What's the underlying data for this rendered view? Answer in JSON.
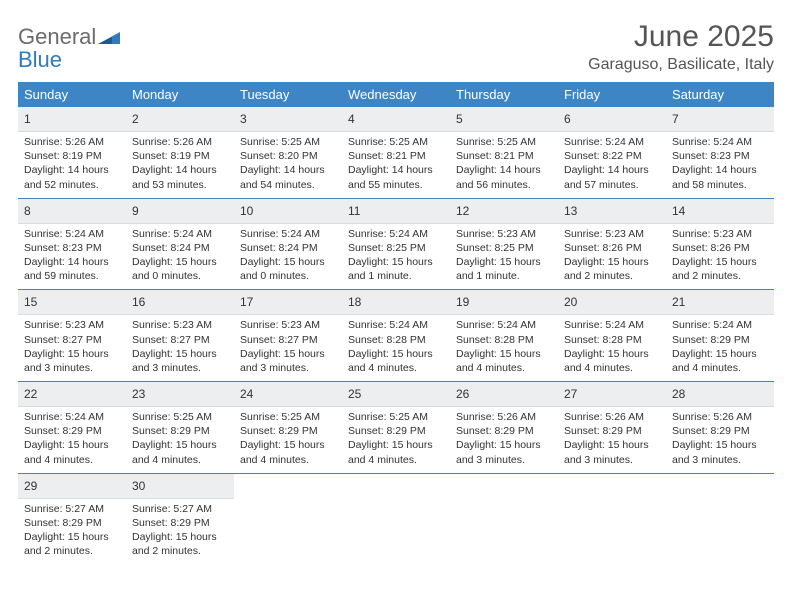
{
  "brand": {
    "name_part1": "General",
    "name_part2": "Blue",
    "color_gray": "#6b6b6b",
    "color_blue": "#2f7bbf"
  },
  "header": {
    "month_title": "June 2025",
    "location": "Garaguso, Basilicate, Italy"
  },
  "calendar": {
    "header_bg": "#3e85c6",
    "header_text_color": "#ffffff",
    "daynum_bg": "#eceeef",
    "border_color": "#3e85c6",
    "day_names": [
      "Sunday",
      "Monday",
      "Tuesday",
      "Wednesday",
      "Thursday",
      "Friday",
      "Saturday"
    ],
    "weeks": [
      [
        {
          "n": "1",
          "sr": "5:26 AM",
          "ss": "8:19 PM",
          "dl": "14 hours and 52 minutes."
        },
        {
          "n": "2",
          "sr": "5:26 AM",
          "ss": "8:19 PM",
          "dl": "14 hours and 53 minutes."
        },
        {
          "n": "3",
          "sr": "5:25 AM",
          "ss": "8:20 PM",
          "dl": "14 hours and 54 minutes."
        },
        {
          "n": "4",
          "sr": "5:25 AM",
          "ss": "8:21 PM",
          "dl": "14 hours and 55 minutes."
        },
        {
          "n": "5",
          "sr": "5:25 AM",
          "ss": "8:21 PM",
          "dl": "14 hours and 56 minutes."
        },
        {
          "n": "6",
          "sr": "5:24 AM",
          "ss": "8:22 PM",
          "dl": "14 hours and 57 minutes."
        },
        {
          "n": "7",
          "sr": "5:24 AM",
          "ss": "8:23 PM",
          "dl": "14 hours and 58 minutes."
        }
      ],
      [
        {
          "n": "8",
          "sr": "5:24 AM",
          "ss": "8:23 PM",
          "dl": "14 hours and 59 minutes."
        },
        {
          "n": "9",
          "sr": "5:24 AM",
          "ss": "8:24 PM",
          "dl": "15 hours and 0 minutes."
        },
        {
          "n": "10",
          "sr": "5:24 AM",
          "ss": "8:24 PM",
          "dl": "15 hours and 0 minutes."
        },
        {
          "n": "11",
          "sr": "5:24 AM",
          "ss": "8:25 PM",
          "dl": "15 hours and 1 minute."
        },
        {
          "n": "12",
          "sr": "5:23 AM",
          "ss": "8:25 PM",
          "dl": "15 hours and 1 minute."
        },
        {
          "n": "13",
          "sr": "5:23 AM",
          "ss": "8:26 PM",
          "dl": "15 hours and 2 minutes."
        },
        {
          "n": "14",
          "sr": "5:23 AM",
          "ss": "8:26 PM",
          "dl": "15 hours and 2 minutes."
        }
      ],
      [
        {
          "n": "15",
          "sr": "5:23 AM",
          "ss": "8:27 PM",
          "dl": "15 hours and 3 minutes."
        },
        {
          "n": "16",
          "sr": "5:23 AM",
          "ss": "8:27 PM",
          "dl": "15 hours and 3 minutes."
        },
        {
          "n": "17",
          "sr": "5:23 AM",
          "ss": "8:27 PM",
          "dl": "15 hours and 3 minutes."
        },
        {
          "n": "18",
          "sr": "5:24 AM",
          "ss": "8:28 PM",
          "dl": "15 hours and 4 minutes."
        },
        {
          "n": "19",
          "sr": "5:24 AM",
          "ss": "8:28 PM",
          "dl": "15 hours and 4 minutes."
        },
        {
          "n": "20",
          "sr": "5:24 AM",
          "ss": "8:28 PM",
          "dl": "15 hours and 4 minutes."
        },
        {
          "n": "21",
          "sr": "5:24 AM",
          "ss": "8:29 PM",
          "dl": "15 hours and 4 minutes."
        }
      ],
      [
        {
          "n": "22",
          "sr": "5:24 AM",
          "ss": "8:29 PM",
          "dl": "15 hours and 4 minutes."
        },
        {
          "n": "23",
          "sr": "5:25 AM",
          "ss": "8:29 PM",
          "dl": "15 hours and 4 minutes."
        },
        {
          "n": "24",
          "sr": "5:25 AM",
          "ss": "8:29 PM",
          "dl": "15 hours and 4 minutes."
        },
        {
          "n": "25",
          "sr": "5:25 AM",
          "ss": "8:29 PM",
          "dl": "15 hours and 4 minutes."
        },
        {
          "n": "26",
          "sr": "5:26 AM",
          "ss": "8:29 PM",
          "dl": "15 hours and 3 minutes."
        },
        {
          "n": "27",
          "sr": "5:26 AM",
          "ss": "8:29 PM",
          "dl": "15 hours and 3 minutes."
        },
        {
          "n": "28",
          "sr": "5:26 AM",
          "ss": "8:29 PM",
          "dl": "15 hours and 3 minutes."
        }
      ],
      [
        {
          "n": "29",
          "sr": "5:27 AM",
          "ss": "8:29 PM",
          "dl": "15 hours and 2 minutes."
        },
        {
          "n": "30",
          "sr": "5:27 AM",
          "ss": "8:29 PM",
          "dl": "15 hours and 2 minutes."
        },
        null,
        null,
        null,
        null,
        null
      ]
    ],
    "labels": {
      "sunrise": "Sunrise:",
      "sunset": "Sunset:",
      "daylight": "Daylight:"
    }
  }
}
